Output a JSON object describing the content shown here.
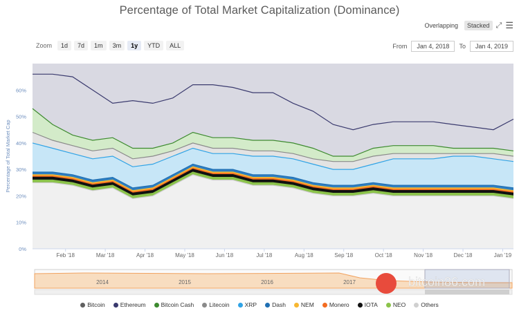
{
  "title": "Percentage of Total Market Capitalization (Dominance)",
  "zoom": {
    "label": "Zoom",
    "buttons": [
      "1d",
      "7d",
      "1m",
      "3m",
      "1y",
      "YTD",
      "ALL"
    ],
    "active": "1y"
  },
  "mode": {
    "overlapping": "Overlapping",
    "stacked": "Stacked",
    "active": "stacked"
  },
  "range": {
    "from_label": "From",
    "from": "Jan 4, 2018",
    "to_label": "To",
    "to": "Jan 4, 2019"
  },
  "watermark": "bitcoin86.com",
  "colors": {
    "Bitcoin": "#e8e8ea",
    "Ethereum": "#d7d7e0",
    "Bitcoin Cash": "#cfe8c6",
    "Litecoin": "#e0e0e0",
    "XRP": "#c6e4f6",
    "Dash": "#2f7fc1",
    "NEM": "#f7b731",
    "Monero": "#f36c21",
    "IOTA": "#111111",
    "NEO": "#8bc34a",
    "Others": "#e0e0e0"
  },
  "chart_data": {
    "type": "area",
    "stacking": "stacked",
    "title": "Percentage of Total Market Capitalization (Dominance)",
    "ylabel": "Percentage of Total Market Cap",
    "ylim": [
      0,
      70
    ],
    "yticks": [
      "0%",
      "10%",
      "20%",
      "30%",
      "40%",
      "50%",
      "60%"
    ],
    "xticks": [
      "Feb '18",
      "Mar '18",
      "Apr '18",
      "May '18",
      "Jun '18",
      "Jul '18",
      "Aug '18",
      "Sep '18",
      "Oct '18",
      "Nov '18",
      "Dec '18",
      "Jan '19"
    ],
    "x": [
      "Jan 4 '18",
      "Jan 20 '18",
      "Feb 5 '18",
      "Feb 20 '18",
      "Mar 5 '18",
      "Mar 20 '18",
      "Apr 5 '18",
      "Apr 20 '18",
      "May 5 '18",
      "May 20 '18",
      "Jun 5 '18",
      "Jun 20 '18",
      "Jul 5 '18",
      "Jul 20 '18",
      "Aug 5 '18",
      "Aug 20 '18",
      "Sep 5 '18",
      "Sep 20 '18",
      "Oct 5 '18",
      "Oct 20 '18",
      "Nov 5 '18",
      "Nov 20 '18",
      "Dec 5 '18",
      "Dec 20 '18",
      "Jan 4 '19"
    ],
    "series_legend": [
      "Bitcoin",
      "Ethereum",
      "Bitcoin Cash",
      "Litecoin",
      "XRP",
      "Dash",
      "NEM",
      "Monero",
      "IOTA",
      "NEO",
      "Others"
    ],
    "stack_tops": {
      "Others": [
        25,
        25,
        24,
        22,
        23,
        19,
        20,
        24,
        28,
        26,
        26,
        24,
        24,
        23,
        21,
        20,
        20,
        21,
        20,
        20,
        20,
        20,
        20,
        20,
        19
      ],
      "NEO": [
        26,
        26,
        25,
        23,
        24,
        20,
        21,
        25,
        29,
        27,
        27,
        25,
        25,
        24,
        22,
        21,
        21,
        22,
        21,
        21,
        21,
        21,
        21,
        21,
        20
      ],
      "IOTA": [
        27,
        27,
        26,
        24,
        25,
        21,
        22,
        26,
        30,
        28,
        28,
        26,
        26,
        25,
        23,
        22,
        22,
        23,
        22,
        22,
        22,
        22,
        22,
        22,
        21
      ],
      "Monero": [
        27.5,
        27.5,
        26.5,
        24.5,
        25.5,
        21.5,
        22.5,
        26.5,
        30.5,
        28.5,
        28.5,
        26.5,
        26.5,
        25.5,
        23.5,
        22.5,
        22.5,
        23.5,
        22.5,
        22.5,
        22.5,
        22.5,
        22.5,
        22.5,
        21.5
      ],
      "NEM": [
        28,
        28,
        27,
        25,
        26,
        22,
        23,
        27,
        31,
        29,
        29,
        27,
        27,
        26,
        24,
        23,
        23,
        24,
        23,
        23,
        23,
        23,
        23,
        23,
        22
      ],
      "Dash": [
        29,
        29,
        28,
        26,
        27,
        23,
        24,
        28,
        32,
        30,
        30,
        28,
        28,
        27,
        25,
        24,
        24,
        25,
        24,
        24,
        24,
        24,
        24,
        24,
        23
      ],
      "XRP": [
        40,
        38,
        36,
        34,
        35,
        31,
        32,
        35,
        38,
        36,
        36,
        35,
        35,
        34,
        32,
        30,
        30,
        32,
        34,
        34,
        34,
        35,
        35,
        34,
        33
      ],
      "Litecoin": [
        44,
        41,
        39,
        37,
        38,
        34,
        35,
        37,
        40,
        38,
        38,
        37,
        37,
        36,
        34,
        33,
        33,
        35,
        36,
        36,
        36,
        36,
        36,
        36,
        35
      ],
      "Bitcoin Cash": [
        53,
        47,
        43,
        41,
        42,
        38,
        38,
        40,
        44,
        42,
        42,
        41,
        41,
        40,
        38,
        35,
        35,
        38,
        39,
        39,
        39,
        38,
        38,
        38,
        37
      ],
      "Ethereum": [
        66,
        66,
        65,
        60,
        55,
        56,
        55,
        57,
        62,
        62,
        61,
        59,
        59,
        55,
        52,
        47,
        45,
        47,
        48,
        48,
        48,
        47,
        46,
        45,
        49
      ],
      "Bitcoin": [
        70,
        70,
        70,
        70,
        70,
        70,
        70,
        70,
        70,
        70,
        70,
        70,
        70,
        70,
        70,
        70,
        70,
        70,
        70,
        70,
        70,
        70,
        70,
        70,
        70
      ]
    },
    "navigator_years": [
      "2014",
      "2015",
      "2016",
      "2017"
    ]
  }
}
